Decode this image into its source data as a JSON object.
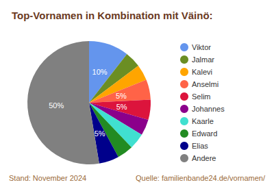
{
  "chart_data": {
    "type": "pie",
    "title": "Top-Vornamen in Kombination mit Väinö:",
    "categories": [
      "Viktor",
      "Jalmar",
      "Kalevi",
      "Anselmi",
      "Selim",
      "Johannes",
      "Kaarle",
      "Edward",
      "Elias",
      "Andere"
    ],
    "values": [
      10,
      4,
      4,
      5,
      5,
      4,
      4,
      4,
      5,
      50
    ],
    "value_labels": [
      "10%",
      null,
      null,
      "5%",
      "5%",
      null,
      null,
      null,
      "5%",
      "50%"
    ],
    "colors": [
      "#6495ed",
      "#6b8e23",
      "#ffa500",
      "#ff6347",
      "#dc143c",
      "#8b008b",
      "#40e0d0",
      "#228b22",
      "#00008b",
      "#808080"
    ],
    "data_labels": true,
    "legend": "right",
    "annotations": [
      "Stand: November 2024",
      "Quelle: familienbande24.de/vornamen/"
    ]
  }
}
